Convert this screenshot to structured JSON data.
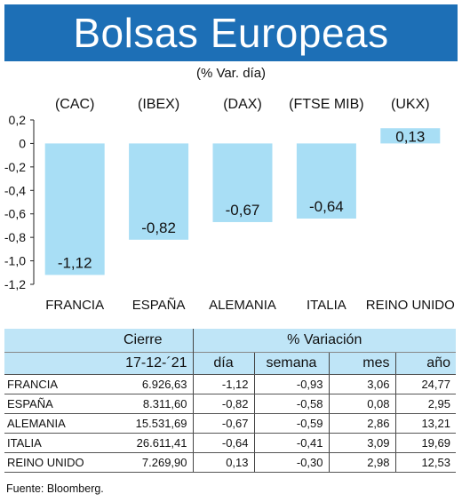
{
  "header": {
    "title": "Bolsas Europeas",
    "subtitle": "(% Var. día)"
  },
  "chart_data": {
    "type": "bar",
    "categories": [
      "FRANCIA",
      "ESPAÑA",
      "ALEMANIA",
      "ITALIA",
      "REINO UNIDO"
    ],
    "indices": [
      "(CAC)",
      "(IBEX)",
      "(DAX)",
      "(FTSE MIB)",
      "(UKX)"
    ],
    "values": [
      -1.12,
      -0.82,
      -0.67,
      -0.64,
      0.13
    ],
    "value_labels": [
      "-1,12",
      "-0,82",
      "-0,67",
      "-0,64",
      "0,13"
    ],
    "ylim": [
      -1.2,
      0.2
    ],
    "yticks": [
      0.2,
      0,
      -0.2,
      -0.4,
      -0.6,
      -0.8,
      -1.0,
      -1.2
    ],
    "ytick_labels": [
      "0,2",
      "0",
      "-0,2",
      "-0,4",
      "-0,6",
      "-0,8",
      "-1,0",
      "-1,2"
    ],
    "bar_color": "#a8def5",
    "grid": false
  },
  "table": {
    "header_cierre": "Cierre",
    "header_variacion": "% Variación",
    "date": "17-12-´21",
    "cols": [
      "día",
      "semana",
      "mes",
      "año"
    ],
    "rows": [
      {
        "name": "FRANCIA",
        "cierre": "6.926,63",
        "dia": "-1,12",
        "semana": "-0,93",
        "mes": "3,06",
        "ano": "24,77"
      },
      {
        "name": "ESPAÑA",
        "cierre": "8.311,60",
        "dia": "-0,82",
        "semana": "-0,58",
        "mes": "0,08",
        "ano": "2,95"
      },
      {
        "name": "ALEMANIA",
        "cierre": "15.531,69",
        "dia": "-0,67",
        "semana": "-0,59",
        "mes": "2,86",
        "ano": "13,21"
      },
      {
        "name": "ITALIA",
        "cierre": "26.611,41",
        "dia": "-0,64",
        "semana": "-0,41",
        "mes": "3,09",
        "ano": "19,69"
      },
      {
        "name": "REINO UNIDO",
        "cierre": "7.269,90",
        "dia": "0,13",
        "semana": "-0,30",
        "mes": "2,98",
        "ano": "12,53"
      }
    ]
  },
  "source": "Fuente: Bloomberg."
}
